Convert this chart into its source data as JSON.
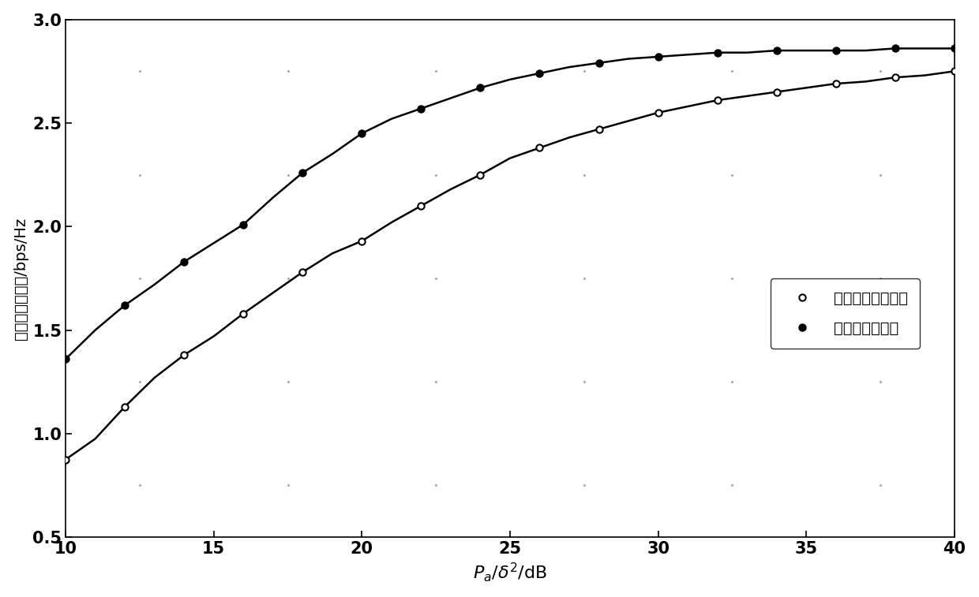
{
  "x_line": [
    10,
    11,
    12,
    13,
    14,
    15,
    16,
    17,
    18,
    19,
    20,
    21,
    22,
    23,
    24,
    25,
    26,
    27,
    28,
    29,
    30,
    31,
    32,
    33,
    34,
    35,
    36,
    37,
    38,
    39,
    40
  ],
  "x_markers": [
    10,
    12,
    14,
    16,
    18,
    20,
    22,
    24,
    26,
    28,
    30,
    32,
    34,
    36,
    38,
    40
  ],
  "y_proposed_line": [
    0.875,
    0.975,
    1.13,
    1.27,
    1.38,
    1.47,
    1.58,
    1.68,
    1.78,
    1.87,
    1.93,
    2.02,
    2.1,
    2.18,
    2.25,
    2.33,
    2.38,
    2.43,
    2.47,
    2.51,
    2.55,
    2.58,
    2.61,
    2.63,
    2.65,
    2.67,
    2.69,
    2.7,
    2.72,
    2.73,
    2.75
  ],
  "y_proposed_markers": [
    0.875,
    1.13,
    1.38,
    1.58,
    1.78,
    1.93,
    2.1,
    2.25,
    2.38,
    2.47,
    2.55,
    2.61,
    2.65,
    2.69,
    2.72,
    2.75
  ],
  "y_traditional_line": [
    1.36,
    1.5,
    1.62,
    1.72,
    1.83,
    1.92,
    2.01,
    2.14,
    2.26,
    2.35,
    2.45,
    2.52,
    2.57,
    2.62,
    2.67,
    2.71,
    2.74,
    2.77,
    2.79,
    2.81,
    2.82,
    2.83,
    2.84,
    2.84,
    2.85,
    2.85,
    2.85,
    2.85,
    2.86,
    2.86,
    2.86
  ],
  "y_traditional_markers": [
    1.36,
    1.62,
    1.83,
    2.01,
    2.26,
    2.45,
    2.57,
    2.67,
    2.74,
    2.79,
    2.82,
    2.84,
    2.85,
    2.85,
    2.86,
    2.86
  ],
  "xlabel": "$\\mathit{P_a/\\delta^2}$/dB",
  "ylabel": "平均监听和速率/bps/Hz",
  "legend_proposed": "本发明的传输方法",
  "legend_traditional": "传统的监听方法",
  "xlim": [
    10,
    40
  ],
  "ylim": [
    0.5,
    3.0
  ],
  "xticks": [
    10,
    15,
    20,
    25,
    30,
    35,
    40
  ],
  "yticks": [
    0.5,
    1.0,
    1.5,
    2.0,
    2.5,
    3.0
  ],
  "bg_color": "#ffffff",
  "line_color": "#000000",
  "linewidth": 1.8,
  "markersize": 6,
  "minor_dot_x": [
    12.5,
    17.5,
    22.5,
    27.5,
    32.5,
    37.5
  ],
  "minor_dot_y": [
    0.75,
    1.25,
    1.75,
    2.25,
    2.75
  ]
}
